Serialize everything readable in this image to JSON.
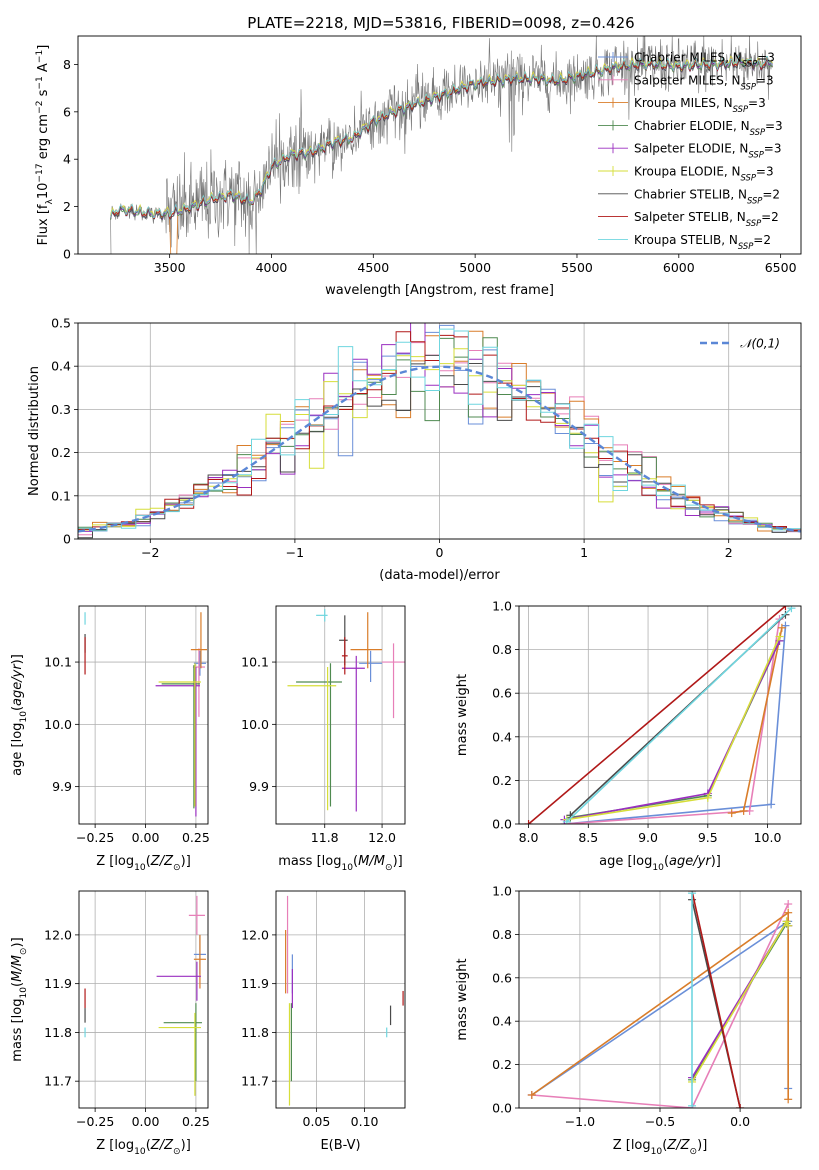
{
  "figure_title": "PLATE=2218, MJD=53816, FIBERID=0098, z=0.426",
  "colors": {
    "Chabrier MILES": "#6a8fd8",
    "Salpeter MILES": "#e77fb8",
    "Kroupa MILES": "#d97d2a",
    "Chabrier ELODIE": "#4f8a50",
    "Salpeter ELODIE": "#9a2fc0",
    "Kroupa ELODIE": "#d6de3a",
    "Chabrier STELIB": "#4a4a4a",
    "Salpeter STELIB": "#b01818",
    "Kroupa STELIB": "#6fd6df",
    "data": "#777777",
    "normal": "#5b87d6"
  },
  "chart_data": [
    {
      "id": "spectrum",
      "type": "line",
      "title": "PLATE=2218, MJD=53816, FIBERID=0098, z=0.426",
      "xlabel": "wavelength [Angstrom, rest frame]",
      "ylabel": "Flux [f_λ10^-17 erg cm^-2 s^-1 A^-1]",
      "xlim": [
        3050,
        6600
      ],
      "ylim": [
        0,
        9.2
      ],
      "xticks": [
        3500,
        4000,
        4500,
        5000,
        5500,
        6000,
        6500
      ],
      "yticks": [
        0,
        2,
        4,
        6,
        8
      ],
      "legend_position": "top-right",
      "legend": [
        "Chabrier MILES, N_SSP=3",
        "Salpeter MILES, N_SSP=3",
        "Kroupa MILES, N_SSP=3",
        "Chabrier ELODIE, N_SSP=3",
        "Salpeter ELODIE, N_SSP=3",
        "Kroupa ELODIE, N_SSP=3",
        "Chabrier STELIB, N_SSP=2",
        "Salpeter STELIB, N_SSP=2",
        "Kroupa STELIB, N_SSP=2"
      ],
      "continuum": {
        "x": [
          3210,
          3250,
          3300,
          3400,
          3500,
          3600,
          3700,
          3800,
          3900,
          3950,
          4000,
          4100,
          4200,
          4300,
          4400,
          4500,
          4600,
          4700,
          4800,
          4900,
          5000,
          5100,
          5200,
          5300,
          5400,
          5500,
          5600,
          5700,
          5800,
          5900,
          6000,
          6100,
          6200,
          6300,
          6400,
          6450
        ],
        "y": [
          1.6,
          1.85,
          1.85,
          1.7,
          1.7,
          1.95,
          2.3,
          2.5,
          2.2,
          2.7,
          3.7,
          4.2,
          4.3,
          4.7,
          4.9,
          5.6,
          6.0,
          6.3,
          6.6,
          6.9,
          7.2,
          7.3,
          7.4,
          7.4,
          7.3,
          7.5,
          7.7,
          7.9,
          8.0,
          8.0,
          7.9,
          8.0,
          8.0,
          8.1,
          8.0,
          8.1
        ]
      }
    },
    {
      "id": "residuals",
      "type": "histogram",
      "xlabel": "(data-model)/error",
      "ylabel": "Normed distribution",
      "xlim": [
        -2.5,
        2.5
      ],
      "ylim": [
        0,
        0.5
      ],
      "xticks": [
        -2,
        -1,
        0,
        1,
        2
      ],
      "yticks": [
        0.0,
        0.1,
        0.2,
        0.3,
        0.4,
        0.5
      ],
      "legend": [
        "𝒩(0,1)"
      ],
      "legend_position": "top-right",
      "bin_width": 0.1
    },
    {
      "id": "age-vs-Z",
      "type": "errorbar",
      "xlabel": "Z [log10(Z/Z⊙)]",
      "ylabel": "age  [log10(age/yr)]",
      "xlim": [
        -0.33,
        0.31
      ],
      "ylim": [
        9.84,
        10.19
      ],
      "xticks": [
        -0.25,
        0.0,
        0.25
      ],
      "xticklabels": [
        "−0.25",
        "0.00",
        "0.25"
      ],
      "yticks": [
        9.9,
        10.0,
        10.1
      ],
      "yticklabels": [
        "9.9",
        "10.0",
        "10.1"
      ],
      "points": [
        {
          "model": "Chabrier MILES",
          "x": 0.27,
          "xerr": [
            0.03,
            0.03
          ],
          "y": 10.098,
          "yerr": [
            0.02,
            0.02
          ]
        },
        {
          "model": "Salpeter MILES",
          "x": 0.265,
          "xerr": [
            0.03,
            0.03
          ],
          "y": 10.092,
          "yerr": [
            0.08,
            0.03
          ]
        },
        {
          "model": "Kroupa MILES",
          "x": 0.275,
          "xerr": [
            0.05,
            0.03
          ],
          "y": 10.12,
          "yerr": [
            0.03,
            0.06
          ]
        },
        {
          "model": "Chabrier ELODIE",
          "x": 0.24,
          "xerr": [
            0.16,
            0.03
          ],
          "y": 10.065,
          "yerr": [
            0.2,
            0.03
          ]
        },
        {
          "model": "Salpeter ELODIE",
          "x": 0.25,
          "xerr": [
            0.2,
            0.02
          ],
          "y": 10.062,
          "yerr": [
            0.21,
            0.03
          ]
        },
        {
          "model": "Kroupa ELODIE",
          "x": 0.245,
          "xerr": [
            0.18,
            0.03
          ],
          "y": 10.068,
          "yerr": [
            0.2,
            0.03
          ]
        },
        {
          "model": "Chabrier STELIB",
          "x": -0.3,
          "xerr": [
            0,
            0
          ],
          "y": 10.135,
          "yerr": [
            0.02,
            0.01
          ]
        },
        {
          "model": "Salpeter STELIB",
          "x": -0.3,
          "xerr": [
            0,
            0
          ],
          "y": 10.11,
          "yerr": [
            0.03,
            0.03
          ]
        },
        {
          "model": "Kroupa STELIB",
          "x": -0.3,
          "xerr": [
            0,
            0
          ],
          "y": 10.17,
          "yerr": [
            0.01,
            0.01
          ]
        }
      ]
    },
    {
      "id": "age-vs-mass",
      "type": "errorbar",
      "xlabel": "mass [log10(M/M⊙)]",
      "xlim": [
        11.63,
        12.08
      ],
      "ylim": [
        9.84,
        10.19
      ],
      "xticks": [
        11.8,
        12.0
      ],
      "xticklabels": [
        "11.8",
        "12.0"
      ],
      "yticks": [
        9.9,
        10.0,
        10.1
      ],
      "yticklabels": [
        "9.9",
        "10.0",
        "10.1"
      ],
      "points": [
        {
          "model": "Chabrier MILES",
          "x": 11.96,
          "xerr": [
            0.04,
            0.04
          ],
          "y": 10.098,
          "yerr": [
            0.03,
            0.02
          ]
        },
        {
          "model": "Salpeter MILES",
          "x": 12.04,
          "xerr": [
            0.04,
            0.04
          ],
          "y": 10.1,
          "yerr": [
            0.09,
            0.03
          ]
        },
        {
          "model": "Kroupa MILES",
          "x": 11.95,
          "xerr": [
            0.06,
            0.05
          ],
          "y": 10.12,
          "yerr": [
            0.03,
            0.06
          ]
        },
        {
          "model": "Chabrier ELODIE",
          "x": 11.82,
          "xerr": [
            0.12,
            0.04
          ],
          "y": 10.068,
          "yerr": [
            0.2,
            0.03
          ]
        },
        {
          "model": "Salpeter ELODIE",
          "x": 11.91,
          "xerr": [
            0.05,
            0.03
          ],
          "y": 10.09,
          "yerr": [
            0.23,
            0.02
          ]
        },
        {
          "model": "Kroupa ELODIE",
          "x": 11.81,
          "xerr": [
            0.14,
            0.03
          ],
          "y": 10.062,
          "yerr": [
            0.2,
            0.03
          ]
        },
        {
          "model": "Chabrier STELIB",
          "x": 11.87,
          "xerr": [
            0.02,
            0.01
          ],
          "y": 10.135,
          "yerr": [
            0.04,
            0.04
          ]
        },
        {
          "model": "Salpeter STELIB",
          "x": 11.87,
          "xerr": [
            0.01,
            0.01
          ],
          "y": 10.11,
          "yerr": [
            0.03,
            0.03
          ]
        },
        {
          "model": "Kroupa STELIB",
          "x": 11.8,
          "xerr": [
            0.03,
            0.01
          ],
          "y": 10.175,
          "yerr": [
            0.01,
            0.01
          ]
        }
      ]
    },
    {
      "id": "weight-vs-age",
      "type": "line",
      "xlabel": "age  [log10(age/yr)]",
      "ylabel": "mass weight",
      "xlim": [
        7.92,
        10.28
      ],
      "ylim": [
        0,
        1
      ],
      "xticks": [
        8.0,
        8.5,
        9.0,
        9.5,
        10.0
      ],
      "xticklabels": [
        "8.0",
        "8.5",
        "9.0",
        "9.5",
        "10.0"
      ],
      "yticks": [
        0.0,
        0.2,
        0.4,
        0.6,
        0.8,
        1.0
      ],
      "yticklabels": [
        "0.0",
        "0.2",
        "0.4",
        "0.6",
        "0.8",
        "1.0"
      ],
      "series": [
        {
          "model": "Chabrier MILES",
          "x": [
            8.3,
            10.03,
            10.15
          ],
          "y": [
            0.0,
            0.09,
            0.91
          ]
        },
        {
          "model": "Salpeter MILES",
          "x": [
            8.3,
            9.85,
            10.1
          ],
          "y": [
            0.0,
            0.06,
            0.94
          ]
        },
        {
          "model": "Kroupa MILES",
          "x": [
            9.7,
            9.8,
            10.12
          ],
          "y": [
            0.05,
            0.06,
            0.9
          ]
        },
        {
          "model": "Chabrier ELODIE",
          "x": [
            8.35,
            9.5,
            10.1
          ],
          "y": [
            0.03,
            0.13,
            0.84
          ]
        },
        {
          "model": "Salpeter ELODIE",
          "x": [
            8.3,
            9.5,
            10.1
          ],
          "y": [
            0.02,
            0.14,
            0.84
          ]
        },
        {
          "model": "Kroupa ELODIE",
          "x": [
            8.32,
            9.5,
            10.1
          ],
          "y": [
            0.02,
            0.12,
            0.86
          ]
        },
        {
          "model": "Chabrier STELIB",
          "x": [
            8.35,
            10.15
          ],
          "y": [
            0.04,
            0.96
          ]
        },
        {
          "model": "Salpeter STELIB",
          "x": [
            8.0,
            10.15
          ],
          "y": [
            0.0,
            1.0
          ]
        },
        {
          "model": "Kroupa STELIB",
          "x": [
            8.32,
            10.2
          ],
          "y": [
            0.01,
            0.99
          ]
        }
      ]
    },
    {
      "id": "mass-vs-Z",
      "type": "errorbar",
      "xlabel": "Z [log10(Z/Z⊙)]",
      "ylabel": "mass [log10(M/M⊙)]",
      "xlim": [
        -0.33,
        0.31
      ],
      "ylim": [
        11.645,
        12.09
      ],
      "xticks": [
        -0.25,
        0.0,
        0.25
      ],
      "xticklabels": [
        "−0.25",
        "0.00",
        "0.25"
      ],
      "yticks": [
        11.7,
        11.8,
        11.9,
        12.0
      ],
      "yticklabels": [
        "11.7",
        "11.8",
        "11.9",
        "12.0"
      ],
      "points": [
        {
          "model": "Chabrier MILES",
          "x": 0.27,
          "xerr": [
            0.03,
            0.03
          ],
          "y": 11.96,
          "yerr": [
            0.04,
            0.04
          ]
        },
        {
          "model": "Salpeter MILES",
          "x": 0.255,
          "xerr": [
            0.04,
            0.04
          ],
          "y": 12.04,
          "yerr": [
            0.04,
            0.04
          ]
        },
        {
          "model": "Kroupa MILES",
          "x": 0.27,
          "xerr": [
            0.03,
            0.03
          ],
          "y": 11.95,
          "yerr": [
            0.06,
            0.05
          ]
        },
        {
          "model": "Chabrier ELODIE",
          "x": 0.25,
          "xerr": [
            0.16,
            0.03
          ],
          "y": 11.82,
          "yerr": [
            0.12,
            0.04
          ]
        },
        {
          "model": "Salpeter ELODIE",
          "x": 0.255,
          "xerr": [
            0.2,
            0.02
          ],
          "y": 11.915,
          "yerr": [
            0.05,
            0.03
          ]
        },
        {
          "model": "Kroupa ELODIE",
          "x": 0.245,
          "xerr": [
            0.18,
            0.03
          ],
          "y": 11.81,
          "yerr": [
            0.14,
            0.03
          ]
        },
        {
          "model": "Chabrier STELIB",
          "x": -0.3,
          "xerr": [
            0,
            0
          ],
          "y": 11.84,
          "yerr": [
            0.02,
            0.01
          ]
        },
        {
          "model": "Salpeter STELIB",
          "x": -0.3,
          "xerr": [
            0,
            0
          ],
          "y": 11.87,
          "yerr": [
            0.02,
            0.02
          ]
        },
        {
          "model": "Kroupa STELIB",
          "x": -0.3,
          "xerr": [
            0,
            0
          ],
          "y": 11.8,
          "yerr": [
            0.01,
            0.01
          ]
        }
      ]
    },
    {
      "id": "mass-vs-ebv",
      "type": "errorbar",
      "xlabel": "E(B-V)",
      "xlim": [
        0.008,
        0.142
      ],
      "ylim": [
        11.645,
        12.09
      ],
      "xticks": [
        0.05,
        0.1
      ],
      "xticklabels": [
        "0.05",
        "0.10"
      ],
      "yticks": [
        11.7,
        11.8,
        11.9,
        12.0
      ],
      "yticklabels": [
        "11.7",
        "11.8",
        "11.9",
        "12.0"
      ],
      "points": [
        {
          "model": "Chabrier MILES",
          "x": 0.025,
          "xerr": [
            0,
            0
          ],
          "y": 11.92,
          "yerr": [
            0.04,
            0.04
          ]
        },
        {
          "model": "Salpeter MILES",
          "x": 0.02,
          "xerr": [
            0,
            0
          ],
          "y": 11.97,
          "yerr": [
            0.09,
            0.11
          ]
        },
        {
          "model": "Kroupa MILES",
          "x": 0.018,
          "xerr": [
            0,
            0
          ],
          "y": 11.95,
          "yerr": [
            0.07,
            0.06
          ]
        },
        {
          "model": "Chabrier ELODIE",
          "x": 0.024,
          "xerr": [
            0,
            0
          ],
          "y": 11.82,
          "yerr": [
            0.12,
            0.04
          ]
        },
        {
          "model": "Salpeter ELODIE",
          "x": 0.025,
          "xerr": [
            0,
            0
          ],
          "y": 11.9,
          "yerr": [
            0.05,
            0.03
          ]
        },
        {
          "model": "Kroupa ELODIE",
          "x": 0.022,
          "xerr": [
            0,
            0
          ],
          "y": 11.79,
          "yerr": [
            0.14,
            0.07
          ]
        },
        {
          "model": "Chabrier STELIB",
          "x": 0.127,
          "xerr": [
            0,
            0
          ],
          "y": 11.835,
          "yerr": [
            0.02,
            0.02
          ]
        },
        {
          "model": "Salpeter STELIB",
          "x": 0.14,
          "xerr": [
            0,
            0
          ],
          "y": 11.875,
          "yerr": [
            0.02,
            0.01
          ]
        },
        {
          "model": "Kroupa STELIB",
          "x": 0.123,
          "xerr": [
            0,
            0
          ],
          "y": 11.8,
          "yerr": [
            0.01,
            0.01
          ]
        }
      ]
    },
    {
      "id": "weight-vs-Z",
      "type": "line",
      "xlabel": "Z [log10(Z/Z⊙)]",
      "ylabel": "mass weight",
      "xlim": [
        -1.38,
        0.38
      ],
      "ylim": [
        0,
        1
      ],
      "xticks": [
        -1.0,
        -0.5,
        0.0
      ],
      "xticklabels": [
        "−1.0",
        "−0.5",
        "0.0"
      ],
      "yticks": [
        0.0,
        0.2,
        0.4,
        0.6,
        0.8,
        1.0
      ],
      "yticklabels": [
        "0.0",
        "0.2",
        "0.4",
        "0.6",
        "0.8",
        "1.0"
      ],
      "series": [
        {
          "model": "Chabrier MILES",
          "x": [
            -1.3,
            0.3,
            0.3
          ],
          "y": [
            0.06,
            0.86,
            0.09
          ]
        },
        {
          "model": "Salpeter MILES",
          "x": [
            -1.3,
            -0.3,
            0.3
          ],
          "y": [
            0.06,
            0.0,
            0.94
          ]
        },
        {
          "model": "Kroupa MILES",
          "x": [
            -1.3,
            0.3,
            0.3
          ],
          "y": [
            0.06,
            0.9,
            0.04
          ]
        },
        {
          "model": "Chabrier ELODIE",
          "x": [
            -0.3,
            0.29,
            0.3
          ],
          "y": [
            0.13,
            0.85,
            0.84
          ]
        },
        {
          "model": "Salpeter ELODIE",
          "x": [
            -0.3,
            0.29,
            0.3
          ],
          "y": [
            0.14,
            0.86,
            0.84
          ]
        },
        {
          "model": "Kroupa ELODIE",
          "x": [
            -0.3,
            0.29,
            0.3
          ],
          "y": [
            0.12,
            0.86,
            0.84
          ]
        },
        {
          "model": "Chabrier STELIB",
          "x": [
            -0.3,
            0.0
          ],
          "y": [
            0.96,
            0.0
          ]
        },
        {
          "model": "Salpeter STELIB",
          "x": [
            -0.3,
            0.0
          ],
          "y": [
            1.0,
            0.0
          ]
        },
        {
          "model": "Kroupa STELIB",
          "x": [
            -0.3,
            -0.3
          ],
          "y": [
            0.01,
            0.99
          ]
        }
      ]
    }
  ]
}
